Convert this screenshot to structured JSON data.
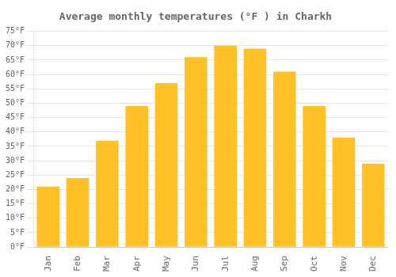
{
  "chart_data": {
    "type": "bar",
    "title": "Average monthly temperatures (°F ) in Charkh",
    "categories": [
      "Jan",
      "Feb",
      "Mar",
      "Apr",
      "May",
      "Jun",
      "Jul",
      "Aug",
      "Sep",
      "Oct",
      "Nov",
      "Dec"
    ],
    "values": [
      21,
      24,
      37,
      49,
      57,
      66,
      70,
      69,
      61,
      49,
      38,
      29
    ],
    "color": "#FFC125",
    "ylim": [
      0,
      75
    ],
    "yticks": [
      {
        "value": 0,
        "label": "0°F"
      },
      {
        "value": 5,
        "label": "5°F"
      },
      {
        "value": 10,
        "label": "10°F"
      },
      {
        "value": 15,
        "label": "15°F"
      },
      {
        "value": 20,
        "label": "20°F"
      },
      {
        "value": 25,
        "label": "25°F"
      },
      {
        "value": 30,
        "label": "30°F"
      },
      {
        "value": 35,
        "label": "35°F"
      },
      {
        "value": 40,
        "label": "40°F"
      },
      {
        "value": 45,
        "label": "45°F"
      },
      {
        "value": 50,
        "label": "50°F"
      },
      {
        "value": 55,
        "label": "55°F"
      },
      {
        "value": 60,
        "label": "60°F"
      },
      {
        "value": 65,
        "label": "65°F"
      },
      {
        "value": 70,
        "label": "70°F"
      },
      {
        "value": 75,
        "label": "75°F"
      }
    ],
    "grid": true
  }
}
